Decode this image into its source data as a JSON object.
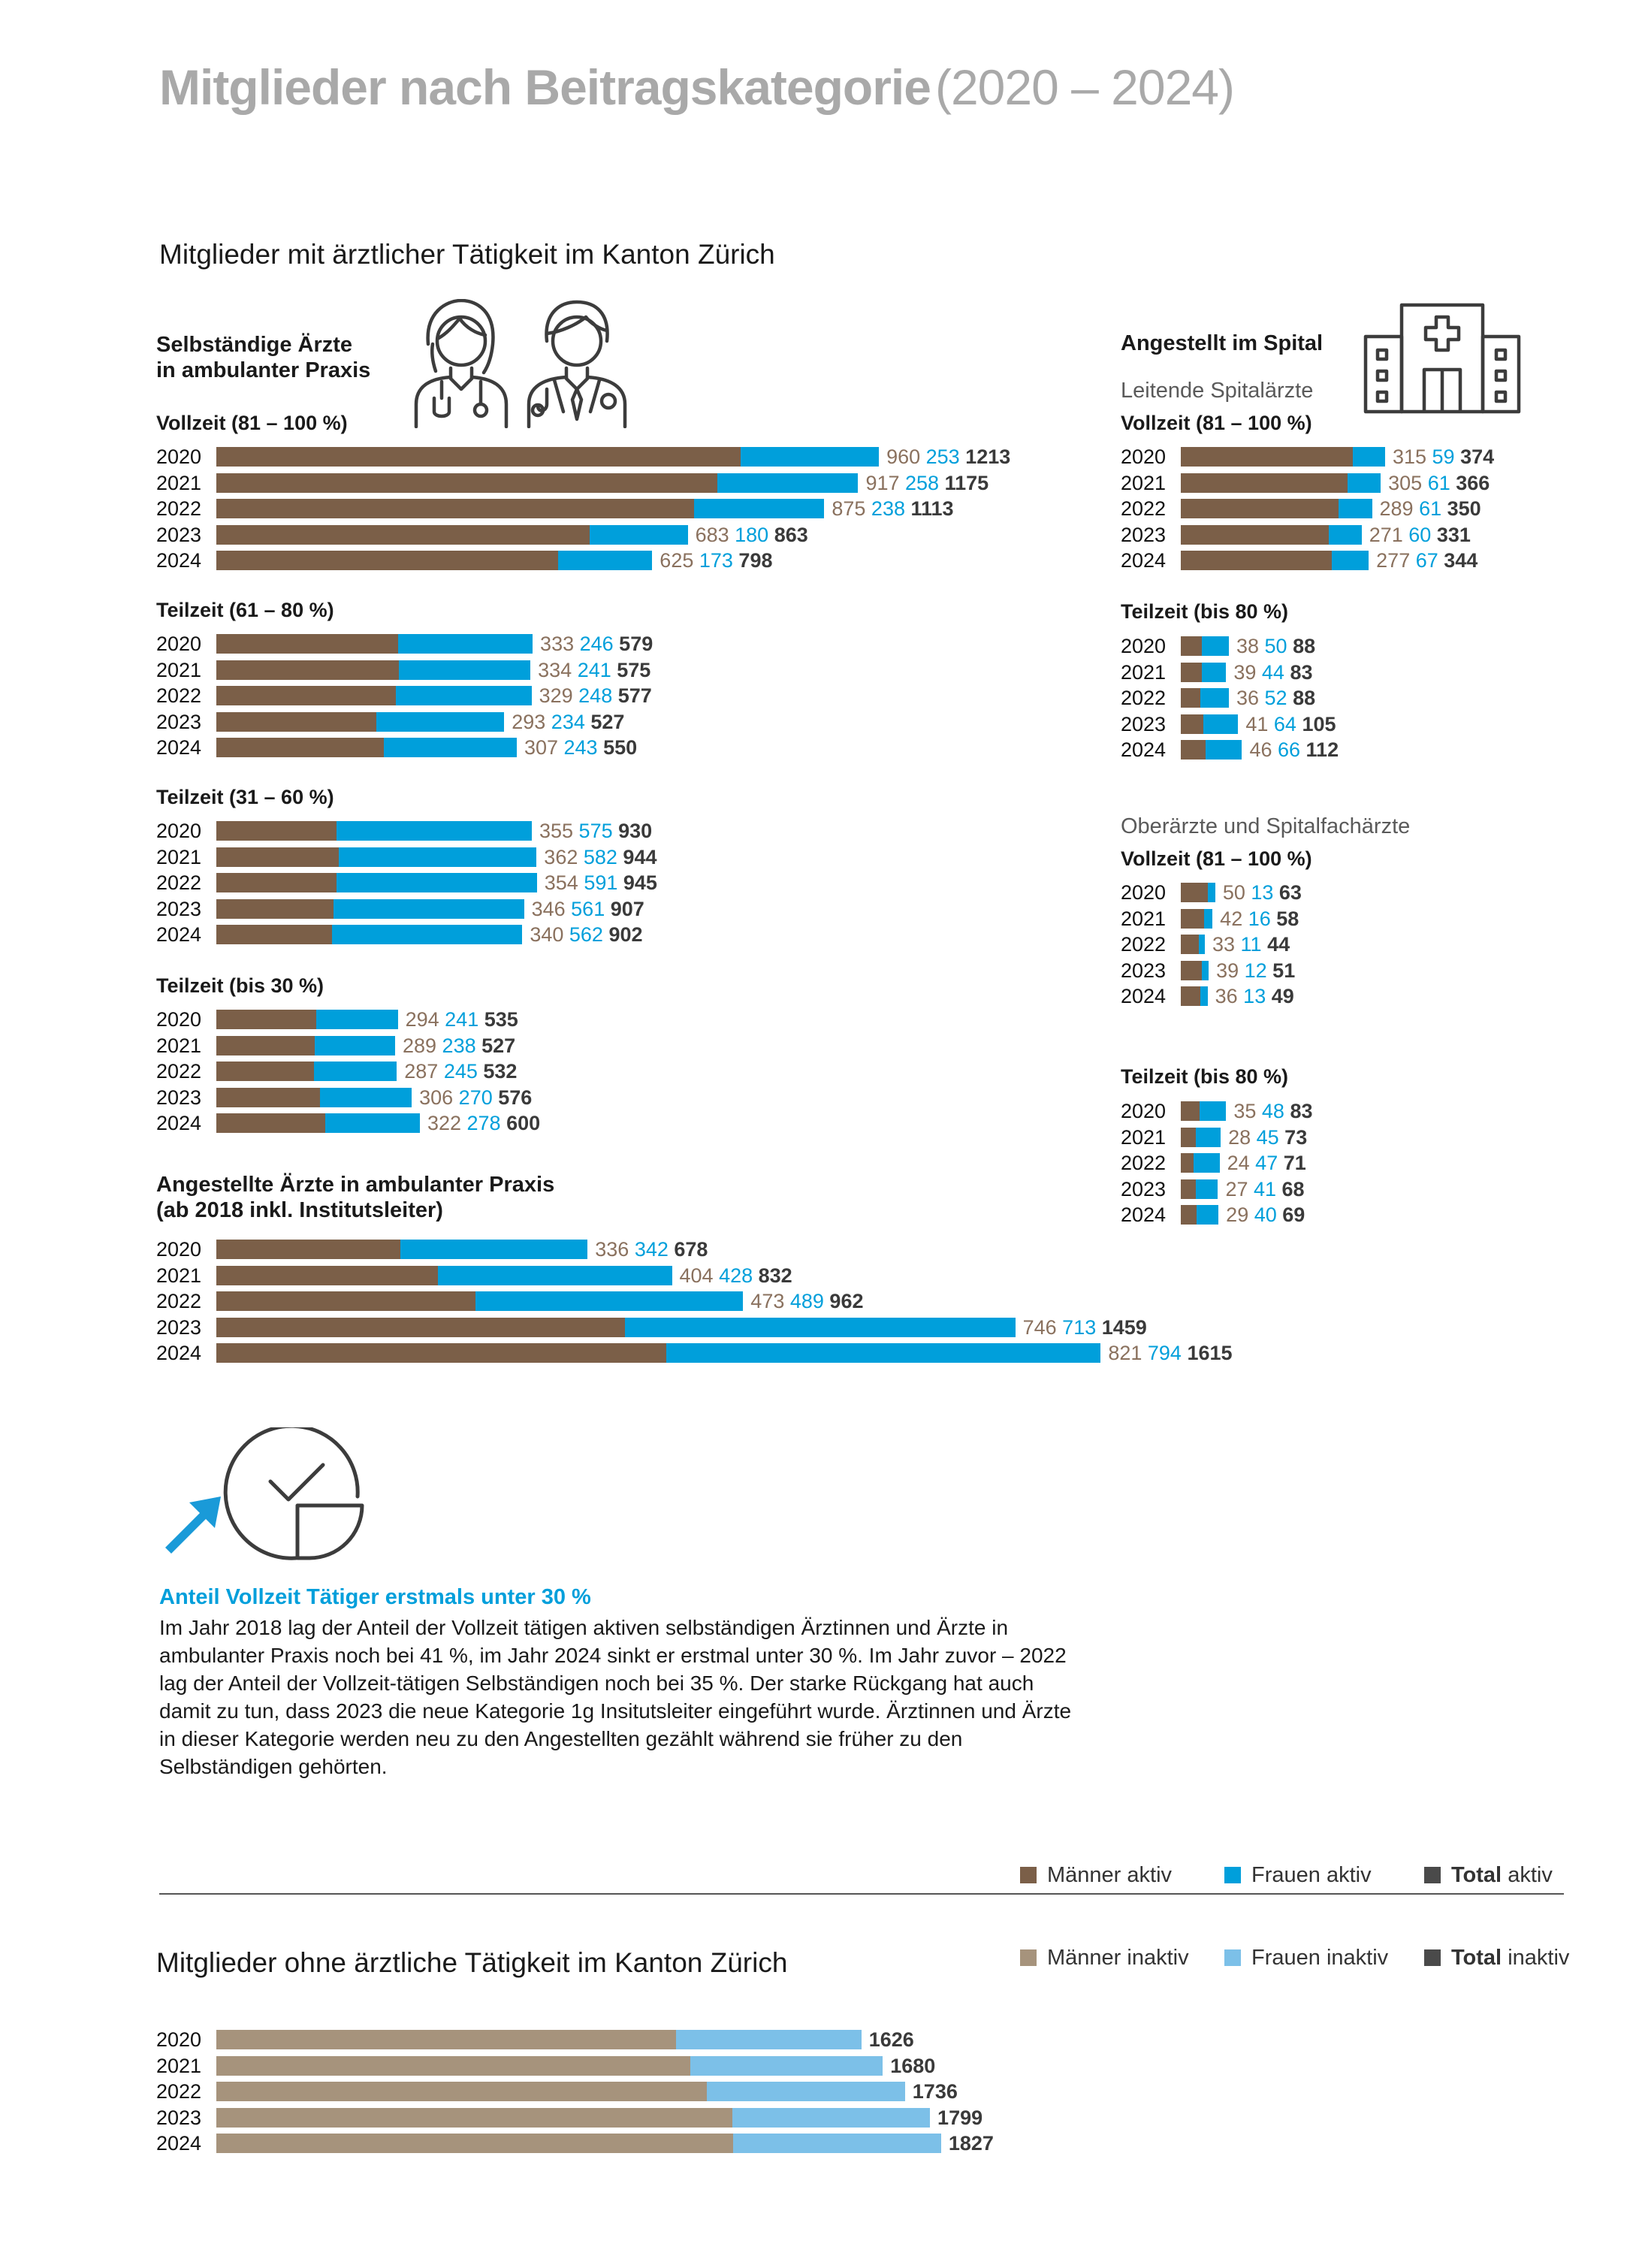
{
  "title": {
    "bold": "Mitglieder nach Beitragskategorie",
    "light": "(2020 – 2024)"
  },
  "section_active": {
    "title": "Mitglieder mit ärztlicher Tätigkeit im Kanton Zürich"
  },
  "selbst": {
    "heading_1": "Selbständige Ärzte",
    "heading_2": "in ambulanter Praxis"
  },
  "angestellt_praxis": {
    "heading_1": "Angestellte Ärzte in ambulanter Praxis",
    "heading_2": "(ab 2018 inkl. Institutsleiter)"
  },
  "spital": {
    "heading": "Angestellt im Spital",
    "sub_leitende": "Leitende Spitalärzte",
    "sub_ober": "Oberärzte und Spitalfachärzte"
  },
  "callout": {
    "title": "Anteil Vollzeit Tätiger erstmals unter 30 %",
    "text": "Im Jahr 2018 lag der Anteil der Vollzeit tätigen aktiven selbständigen Ärztinnen und Ärzte in ambulanter Praxis noch bei 41 %, im Jahr 2024 sinkt er erstmal unter 30 %. Im Jahr zuvor – 2022 lag der Anteil der Vollzeit-tätigen Selbständigen noch bei 35 %. Der starke Rückgang hat auch damit zu tun, dass 2023 die neue Kategorie 1g Insitutsleiter eingeführt wurde. Ärztinnen und Ärzte in dieser Kategorie werden neu zu den Angestellten gezählt während sie früher zu den Selbständigen gehörten."
  },
  "legend_active": {
    "men": "Männer aktiv",
    "women": "Frauen aktiv",
    "total_bold": "Total",
    "total_rest": "aktiv"
  },
  "legend_inactive": {
    "men": "Männer inaktiv",
    "women": "Frauen inaktiv",
    "total_bold": "Total",
    "total_rest": "inaktiv"
  },
  "section_inactive": {
    "title": "Mitglieder ohne ärztliche Tätigkeit im Kanton Zürich"
  },
  "colors": {
    "men_active": "#7b5f48",
    "women_active": "#009fdb",
    "men_inactive": "#a6937c",
    "women_inactive": "#7cc0e8",
    "total": "#3a3a3a"
  },
  "chart_data": [
    {
      "id": "selbst-vollzeit",
      "type": "bar",
      "orientation": "horizontal-stacked",
      "label": "Vollzeit (81 – 100 %)",
      "categories": [
        "2020",
        "2021",
        "2022",
        "2023",
        "2024"
      ],
      "series": [
        {
          "name": "Männer aktiv",
          "values": [
            960,
            917,
            875,
            683,
            625
          ]
        },
        {
          "name": "Frauen aktiv",
          "values": [
            253,
            258,
            238,
            180,
            173
          ]
        }
      ],
      "totals": [
        1213,
        1175,
        1113,
        863,
        798
      ]
    },
    {
      "id": "selbst-teil-61-80",
      "type": "bar",
      "orientation": "horizontal-stacked",
      "label": "Teilzeit (61 – 80 %)",
      "categories": [
        "2020",
        "2021",
        "2022",
        "2023",
        "2024"
      ],
      "series": [
        {
          "name": "Männer aktiv",
          "values": [
            333,
            334,
            329,
            293,
            307
          ]
        },
        {
          "name": "Frauen aktiv",
          "values": [
            246,
            241,
            248,
            234,
            243
          ]
        }
      ],
      "totals": [
        579,
        575,
        577,
        527,
        550
      ]
    },
    {
      "id": "selbst-teil-31-60",
      "type": "bar",
      "orientation": "horizontal-stacked",
      "label": "Teilzeit (31 – 60 %)",
      "categories": [
        "2020",
        "2021",
        "2022",
        "2023",
        "2024"
      ],
      "series": [
        {
          "name": "Männer aktiv",
          "values": [
            355,
            362,
            354,
            346,
            340
          ]
        },
        {
          "name": "Frauen aktiv",
          "values": [
            575,
            582,
            591,
            561,
            562
          ]
        }
      ],
      "totals": [
        930,
        944,
        945,
        907,
        902
      ]
    },
    {
      "id": "selbst-teil-bis-30",
      "type": "bar",
      "orientation": "horizontal-stacked",
      "label": "Teilzeit (bis 30 %)",
      "categories": [
        "2020",
        "2021",
        "2022",
        "2023",
        "2024"
      ],
      "series": [
        {
          "name": "Männer aktiv",
          "values": [
            294,
            289,
            287,
            306,
            322
          ]
        },
        {
          "name": "Frauen aktiv",
          "values": [
            241,
            238,
            245,
            270,
            278
          ]
        }
      ],
      "totals": [
        535,
        527,
        532,
        576,
        600
      ]
    },
    {
      "id": "angestellt-praxis",
      "type": "bar",
      "orientation": "horizontal-stacked",
      "label": "",
      "categories": [
        "2020",
        "2021",
        "2022",
        "2023",
        "2024"
      ],
      "series": [
        {
          "name": "Männer aktiv",
          "values": [
            336,
            404,
            473,
            746,
            821
          ]
        },
        {
          "name": "Frauen aktiv",
          "values": [
            342,
            428,
            489,
            713,
            794
          ]
        }
      ],
      "totals": [
        678,
        832,
        962,
        1459,
        1615
      ]
    },
    {
      "id": "leitende-vollzeit",
      "type": "bar",
      "orientation": "horizontal-stacked",
      "label": "Vollzeit (81 – 100 %)",
      "categories": [
        "2020",
        "2021",
        "2022",
        "2023",
        "2024"
      ],
      "series": [
        {
          "name": "Männer aktiv",
          "values": [
            315,
            305,
            289,
            271,
            277
          ]
        },
        {
          "name": "Frauen aktiv",
          "values": [
            59,
            61,
            61,
            60,
            67
          ]
        }
      ],
      "totals": [
        374,
        366,
        350,
        331,
        344
      ]
    },
    {
      "id": "leitende-teilzeit",
      "type": "bar",
      "orientation": "horizontal-stacked",
      "label": "Teilzeit (bis 80 %)",
      "categories": [
        "2020",
        "2021",
        "2022",
        "2023",
        "2024"
      ],
      "series": [
        {
          "name": "Männer aktiv",
          "values": [
            38,
            39,
            36,
            41,
            46
          ]
        },
        {
          "name": "Frauen aktiv",
          "values": [
            50,
            44,
            52,
            64,
            66
          ]
        }
      ],
      "totals": [
        88,
        83,
        88,
        105,
        112
      ]
    },
    {
      "id": "ober-vollzeit",
      "type": "bar",
      "orientation": "horizontal-stacked",
      "label": "Vollzeit (81 – 100 %)",
      "categories": [
        "2020",
        "2021",
        "2022",
        "2023",
        "2024"
      ],
      "series": [
        {
          "name": "Männer aktiv",
          "values": [
            50,
            42,
            33,
            39,
            36
          ]
        },
        {
          "name": "Frauen aktiv",
          "values": [
            13,
            16,
            11,
            12,
            13
          ]
        }
      ],
      "totals": [
        63,
        58,
        44,
        51,
        49
      ]
    },
    {
      "id": "ober-teilzeit",
      "type": "bar",
      "orientation": "horizontal-stacked",
      "label": "Teilzeit (bis 80 %)",
      "categories": [
        "2020",
        "2021",
        "2022",
        "2023",
        "2024"
      ],
      "series": [
        {
          "name": "Männer aktiv",
          "values": [
            35,
            28,
            24,
            27,
            29
          ]
        },
        {
          "name": "Frauen aktiv",
          "values": [
            48,
            45,
            47,
            41,
            40
          ]
        }
      ],
      "totals": [
        83,
        73,
        71,
        68,
        69
      ]
    },
    {
      "id": "inaktiv",
      "type": "bar",
      "orientation": "horizontal-stacked",
      "label": "",
      "categories": [
        "2020",
        "2021",
        "2022",
        "2023",
        "2024"
      ],
      "series": [
        {
          "name": "Männer inaktiv",
          "values": [
            1159,
            1195,
            1237,
            1301,
            1303
          ]
        },
        {
          "name": "Frauen inaktiv",
          "values": [
            467,
            485,
            499,
            498,
            524
          ]
        }
      ],
      "totals": [
        1626,
        1680,
        1736,
        1799,
        1827
      ]
    }
  ]
}
